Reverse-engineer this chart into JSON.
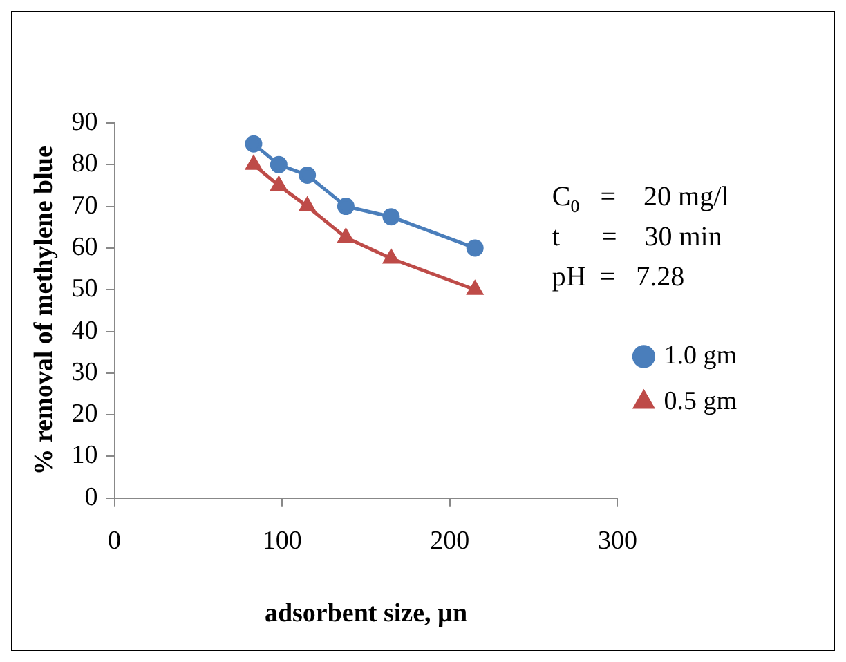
{
  "chart_data": {
    "type": "line",
    "xlabel": "adsorbent size, µn",
    "ylabel": "% removal of methylene blue",
    "x": [
      83,
      98,
      115,
      138,
      165,
      215
    ],
    "series": [
      {
        "name": "1.0 gm",
        "color": "#4a7ebb",
        "marker": "circle",
        "values": [
          85,
          80,
          77.5,
          70,
          67.5,
          60
        ]
      },
      {
        "name": "0.5 gm",
        "color": "#be4b48",
        "marker": "triangle",
        "values": [
          80,
          75,
          70,
          62.5,
          57.5,
          50
        ]
      }
    ],
    "xlim": [
      0,
      300
    ],
    "xticks": [
      0,
      100,
      200,
      300
    ],
    "ylim": [
      0,
      90
    ],
    "yticks": [
      0,
      10,
      20,
      30,
      40,
      50,
      60,
      70,
      80,
      90
    ],
    "grid": false,
    "legend": "right",
    "annotations": [
      "C$_{0}$   =    20 mg/l",
      "t      =    30 min",
      "pH  =   7.28"
    ]
  }
}
